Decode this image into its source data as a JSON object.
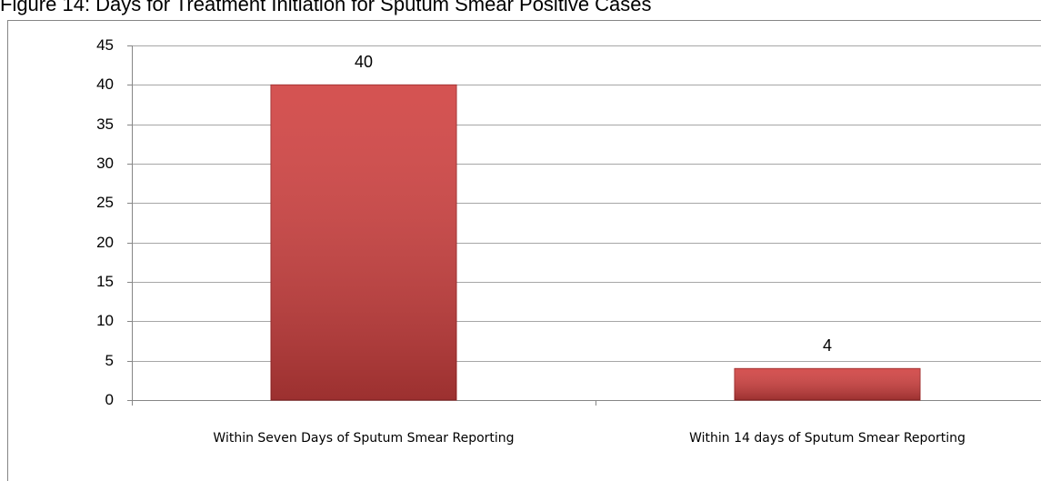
{
  "chart_data": {
    "type": "bar",
    "title": "Figure 14: Days for Treatment Initiation for Sputum Smear Positive Cases",
    "categories": [
      "Within Seven Days of Sputum Smear Reporting",
      "Within 14 days of Sputum Smear Reporting"
    ],
    "values": [
      40,
      4
    ],
    "color": "#d0403f",
    "ylim": [
      0,
      45
    ],
    "yticks": [
      0,
      5,
      10,
      15,
      20,
      25,
      30,
      35,
      40,
      45
    ],
    "grid": true
  }
}
